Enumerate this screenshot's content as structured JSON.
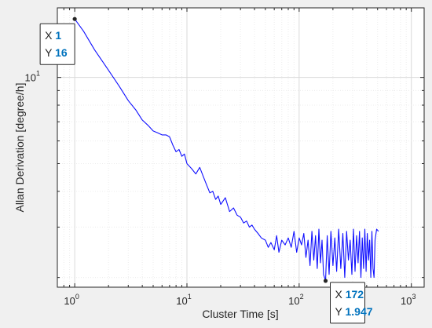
{
  "chart_data": {
    "type": "line",
    "xlabel": "Cluster Time [s]",
    "ylabel": "Allan Derivation [degree/h]",
    "xscale": "log",
    "yscale": "log",
    "xlim": [
      0.7,
      1300
    ],
    "ylim": [
      1.85,
      17.5
    ],
    "x_ticks": [
      {
        "base": "10",
        "exp": "0"
      },
      {
        "base": "10",
        "exp": "1"
      },
      {
        "base": "10",
        "exp": "2"
      },
      {
        "base": "10",
        "exp": "3"
      }
    ],
    "y_ticks": [
      {
        "base": "10",
        "exp": "1"
      }
    ],
    "grid": true,
    "minor_grid": true,
    "series_color": "#1010ff",
    "datatips": [
      {
        "x_label": "X",
        "x_value": "1",
        "y_label": "Y",
        "y_value": "16",
        "x": 1,
        "y": 16
      },
      {
        "x_label": "X",
        "x_value": "172",
        "y_label": "Y",
        "y_value": "1.947",
        "x": 172,
        "y": 1.947
      }
    ],
    "tip_value_color": "#0072bd",
    "series": [
      {
        "x": [
          1,
          1.2,
          1.5,
          2,
          2.5,
          3,
          3.5,
          4,
          4.5,
          5,
          5.5,
          6,
          6.5,
          7,
          7.5,
          8,
          8.5,
          9,
          9.5,
          10,
          11,
          12,
          13,
          14,
          15,
          16,
          17,
          18,
          19,
          20,
          22,
          24,
          26,
          28,
          30,
          32,
          34,
          36,
          38,
          40,
          43,
          46,
          50,
          53,
          56,
          60,
          63,
          66,
          70,
          75,
          80,
          85,
          90,
          95,
          100,
          105,
          110,
          115,
          120,
          125,
          130,
          135,
          140,
          145,
          150,
          155,
          160,
          165,
          172,
          178,
          185,
          192,
          200,
          208,
          216,
          225,
          235,
          245,
          255,
          265,
          275,
          285,
          295,
          305,
          315,
          325,
          335,
          345,
          355,
          365,
          375,
          385,
          395,
          405,
          415,
          425,
          435,
          445,
          455,
          465,
          475,
          490,
          510
        ],
        "y": [
          16,
          14.5,
          12.5,
          10.6,
          9.3,
          8.3,
          7.7,
          7.1,
          6.8,
          6.5,
          6.4,
          6.3,
          6.3,
          6.2,
          5.8,
          5.5,
          5.6,
          5.3,
          5.4,
          5.0,
          4.8,
          4.6,
          4.85,
          4.5,
          4.2,
          3.95,
          4.0,
          3.75,
          3.85,
          3.6,
          3.8,
          3.4,
          3.5,
          3.3,
          3.25,
          3.1,
          3.15,
          3.0,
          3.05,
          2.95,
          2.85,
          2.75,
          2.7,
          2.55,
          2.65,
          2.5,
          2.8,
          2.45,
          2.7,
          2.6,
          2.75,
          2.55,
          2.9,
          2.45,
          2.75,
          2.6,
          2.85,
          2.35,
          2.7,
          2.2,
          2.9,
          2.3,
          2.8,
          2.15,
          2.95,
          2.25,
          2.7,
          2.05,
          1.947,
          2.8,
          2.05,
          2.9,
          2.2,
          2.75,
          2.1,
          2.95,
          2.15,
          2.85,
          2.0,
          2.9,
          2.3,
          2.7,
          2.05,
          2.95,
          2.1,
          2.8,
          2.25,
          2.9,
          2.0,
          2.75,
          2.15,
          2.95,
          2.1,
          2.85,
          2.3,
          2.7,
          2.0,
          2.9,
          2.15,
          2.0,
          2.7,
          2.95,
          2.9
        ]
      }
    ]
  }
}
